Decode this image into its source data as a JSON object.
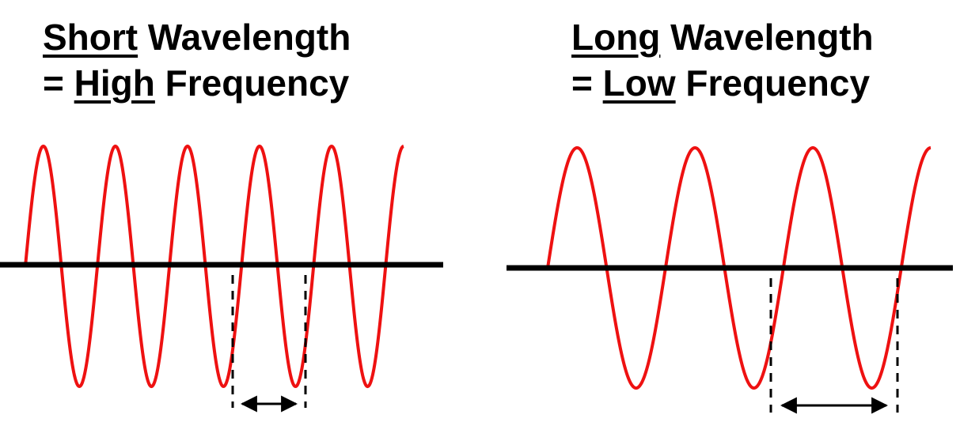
{
  "panels": [
    {
      "line1_emph": "Short",
      "line1_rest": " Wavelength",
      "line2_pre": "= ",
      "line2_emph": "High",
      "line2_rest": " Frequency",
      "cycles": 5.25
    },
    {
      "line1_emph": "Long",
      "line1_rest": " Wavelength",
      "line2_pre": "= ",
      "line2_emph": "Low",
      "line2_rest": " Frequency",
      "cycles": 3.25
    }
  ],
  "colors": {
    "wave": "#ee1111",
    "axis": "#000000",
    "marker": "#000000"
  }
}
